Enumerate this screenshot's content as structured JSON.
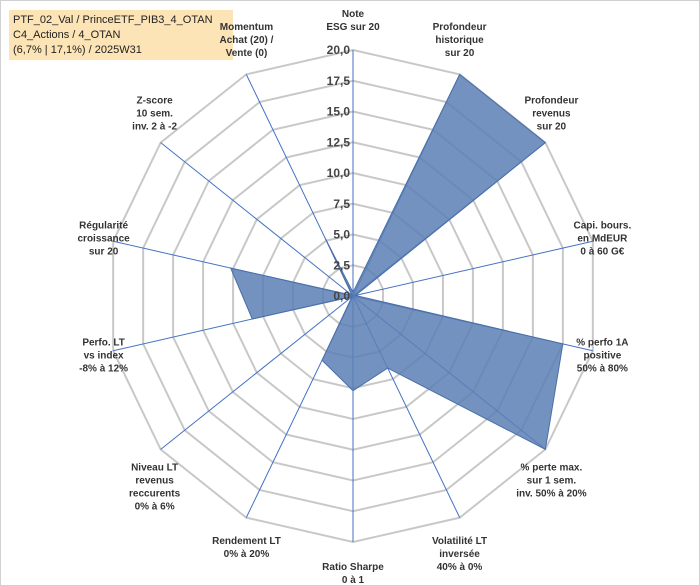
{
  "header": {
    "line1": "PTF_02_Val / PrinceETF_PIB3_4_OTAN",
    "line2": "C4_Actions / 4_OTAN",
    "line3": "(6,7% | 17,1%) / 2025W31"
  },
  "colors": {
    "fill": "#5b7fb5",
    "stroke": "#4a6fa8",
    "grid": "#c8c8c8",
    "spoke": "#4472c4",
    "info_bg": "#fce4b6"
  },
  "chart_data": {
    "type": "radar",
    "title": "",
    "rlim": [
      0,
      20
    ],
    "ticks": [
      "0,0",
      "2,5",
      "5,0",
      "7,5",
      "10,0",
      "12,5",
      "15,0",
      "17,5",
      "20,0"
    ],
    "grid": true,
    "axes": [
      {
        "label": [
          "Note",
          "ESG sur 20"
        ],
        "value": 0.3
      },
      {
        "label": [
          "Profondeur",
          "historique",
          "sur 20"
        ],
        "value": 20
      },
      {
        "label": [
          "Profondeur",
          "revenus",
          "sur 20"
        ],
        "value": 20
      },
      {
        "label": [
          "Capi. bours.",
          "en MdEUR",
          "0 à 60 G€"
        ],
        "value": 0.2
      },
      {
        "label": [
          "% perfo 1A",
          "positive",
          "50% à 80%"
        ],
        "value": 17.5
      },
      {
        "label": [
          "% perte max.",
          "sur 1 sem.",
          "inv. 50% à 20%"
        ],
        "value": 20
      },
      {
        "label": [
          "Volatilité LT",
          "inversée",
          "40% à 0%"
        ],
        "value": 6.5
      },
      {
        "label": [
          "Ratio Sharpe",
          "0 à 1"
        ],
        "value": 7.7
      },
      {
        "label": [
          "Rendement LT",
          "0% à 20%"
        ],
        "value": 5.8
      },
      {
        "label": [
          "Niveau LT",
          "revenus",
          "reccurents",
          "0% à 6%"
        ],
        "value": 0.1
      },
      {
        "label": [
          "Perfo. LT",
          "vs index",
          "-8% à 12%"
        ],
        "value": 8.4
      },
      {
        "label": [
          "Régularité",
          "croissance",
          "sur 20"
        ],
        "value": 10.2
      },
      {
        "label": [
          "Z-score",
          "10 sem.",
          "inv. 2 à -2"
        ],
        "value": 0.1
      },
      {
        "label": [
          "Momentum",
          "Achat (20) /",
          "Vente (0)"
        ],
        "value": 5.2
      }
    ]
  }
}
